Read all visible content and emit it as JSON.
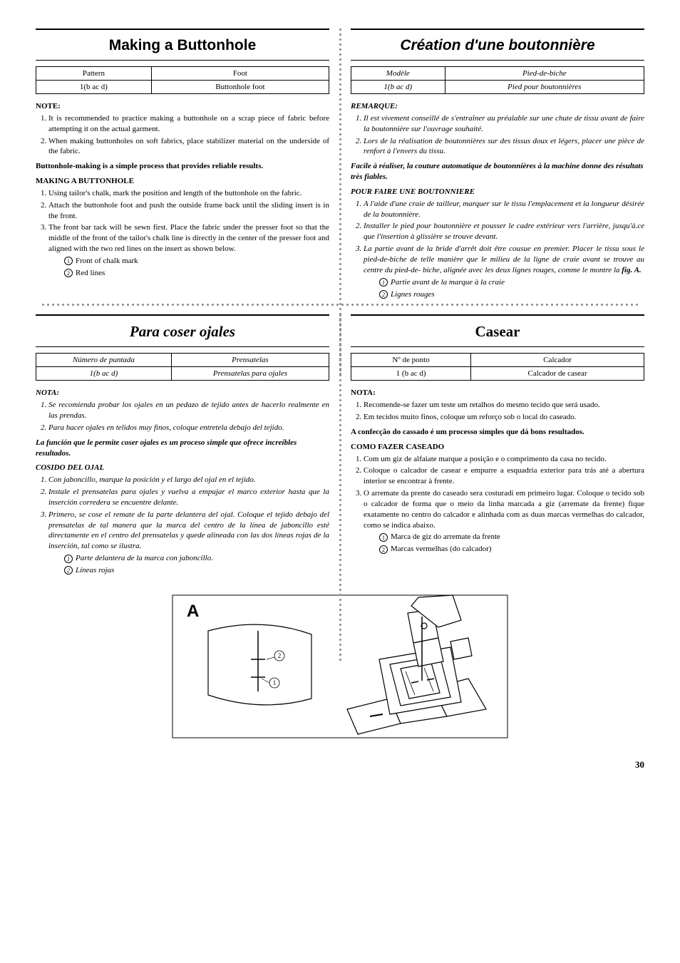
{
  "en": {
    "title": "Making a Buttonhole",
    "th1": "Pattern",
    "th2": "Foot",
    "td1": "1(b ac d)",
    "td2": "Buttonhole foot",
    "note_h": "NOTE:",
    "note1": "It is recommended to practice making a buttonhole on a scrap piece of fabric before attempting it on the actual garment.",
    "note2": "When making buttonholes on soft fabrics, place stabilizer material on the underside of the fabric.",
    "intro": "Buttonhole-making is a simple process that provides reliable results.",
    "proc_h": "MAKING A BUTTONHOLE",
    "s1": "Using tailor's chalk, mark the position and length of the buttonhole on the fabric.",
    "s2": "Attach the buttonhole foot and push the outside frame back until the sliding insert is in the front.",
    "s3": "The front bar tack will be sewn first. Place the fabric under the presser foot so that the middle of the front of the tailor's chalk line is directly in the center of the presser foot and aligned with the two red lines on the insert as shown below.",
    "leg1": "Front of chalk mark",
    "leg2": "Red lines"
  },
  "fr": {
    "title": "Création d'une boutonnière",
    "th1": "Modèle",
    "th2": "Pied-de-biche",
    "td1": "1(b ac d)",
    "td2": "Pied pour boutonnières",
    "note_h": "REMARQUE:",
    "note1": "Il est vivement conseillé de s'entraîner au préalable sur une chute de tissu avant de faire la boutonnière sur l'ouvrage souhaité.",
    "note2": "Lors de la réalisation de boutonnières sur des tissus doux et légers, placer une pièce de renfort à l'envers du tissu.",
    "intro": "Facile à réaliser, la couture automatique de boutonnières à la machine donne des résultats très fiables.",
    "proc_h": "POUR FAIRE UNE BOUTONNIERE",
    "s1": "A l'aide d'une craie de tailleur, marquer sur le tissu l'emplacement et la longueur désirée de la boutonnière.",
    "s2": "Installer le pied pour boutonnière et pousser le cadre extérieur vers l'arrière, jusqu'à.ce que l'insertion à glissière se trouve devant.",
    "s3a": "La partie avant de la bride d'arrêt doit être cousue en premier. Placer le tissu sous le pied-de-biche de telle manière que le milieu de la ligne de craie avant se trouve au centre du pied-de- biche, alignée avec les deux lignes rouges, comme le montre la ",
    "s3b": "fig. A.",
    "leg1": "Partie avant de la marque à la craie",
    "leg2": "Lignes rouges"
  },
  "es": {
    "title": "Para coser ojales",
    "th1": "Número de puntada",
    "th2": "Prensatelas",
    "td1": "1(b ac d)",
    "td2": "Prensatelas para ojales",
    "note_h": "NOTA:",
    "note1": "Se recomienda probar los ojales en un pedazo de tejido antes de hacerlo realmente en las prendas.",
    "note2": "Para hacer ojales en telidos muy finos, coloque entretela debajo del tejido.",
    "intro": "La función que le permite coser ojales es un proceso simple que ofrece increíbles resultados.",
    "proc_h": "COSIDO DEL OJAL",
    "s1": "Con jaboncillo, marque la posición y el largo del ojal en el tejido.",
    "s2": "Instale el prensatelas para ojales y vuelva a empujar el marco exterior hasta que la inserción corredera se encuentre delante.",
    "s3": "Primero, se cose el remate de la parte delantera del ojal. Coloque el tejido debajo del prensatelas de tal manera que la marca del centro de la línea de jaboncillo esté directamente en el centro del prensatelas y quede alineada con las dos líneas rojas de la inserción, tal como se ilustra.",
    "leg1": "Parte delantera de la marca con jaboncillo.",
    "leg2": "Líneas rojas"
  },
  "pt": {
    "title": "Casear",
    "th1": "Nº de ponto",
    "th2": "Calcador",
    "td1": "1 (b ac d)",
    "td2": "Calcador de casear",
    "note_h": "NOTA:",
    "note1": "Recomende-se fazer um teste um retalhos do mesmo tecido que será usado.",
    "note2": "Em tecidos muito finos, coloque um reforço sob o local do caseado.",
    "intro": "A confecção do cassado é um processo simples que dá bons resultados.",
    "proc_h": "COMO FAZER CASEADO",
    "s1": "Com um giz de alfaiate marque a posição e o comprimento da casa no tecido.",
    "s2": "Coloque o calcador de casear e empurre a esquadria exterior para trás até a abertura interior se encontrar à frente.",
    "s3": "O arremate da prente do caseado sera costuradi em primeiro lugar. Coloque o tecido sob o calcador de forma que o meio da linha marcada a giz (arremate da frente) fique exatamente no centro do calcador e alinhada com as duas marcas vermelhas do calcador, como se indica abaixo.",
    "leg1": "Marca de giz do arremate da frente",
    "leg2": "Marcas vermelhas (do calcador)"
  },
  "fig_label": "A",
  "page_num": "30"
}
